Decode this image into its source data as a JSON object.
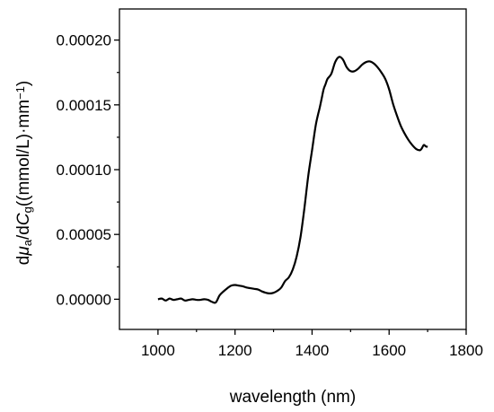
{
  "chart_data": {
    "type": "line",
    "title": "",
    "xlabel": "wavelength (nm)",
    "ylabel": {
      "parts": [
        {
          "text": "d",
          "style": "normal"
        },
        {
          "text": "μ",
          "style": "italic"
        },
        {
          "text": "a",
          "style": "sub"
        },
        {
          "text": "/d",
          "style": "normal"
        },
        {
          "text": "C",
          "style": "italic"
        },
        {
          "text": "g",
          "style": "sub"
        },
        {
          "text": "((mmol/L)·mm",
          "style": "normal"
        },
        {
          "text": "−1",
          "style": "sup"
        },
        {
          "text": ")",
          "style": "normal"
        }
      ]
    },
    "xlim": [
      900,
      1800
    ],
    "ylim": [
      -2.33e-05,
      0.000224
    ],
    "x_ticks": [
      1000,
      1200,
      1400,
      1600,
      1800
    ],
    "x_tick_labels": [
      "1000",
      "1200",
      "1400",
      "1600",
      "1800"
    ],
    "y_ticks": [
      0,
      5e-05,
      0.0001,
      0.00015,
      0.0002
    ],
    "y_tick_labels": [
      "0.00000",
      "0.00005",
      "0.00010",
      "0.00015",
      "0.00020"
    ],
    "grid": false,
    "legend": "none",
    "line_color": "#000000",
    "series": [
      {
        "x": [
          1000,
          1010,
          1020,
          1030,
          1040,
          1050,
          1060,
          1070,
          1080,
          1090,
          1100,
          1110,
          1120,
          1130,
          1140,
          1150,
          1160,
          1170,
          1180,
          1190,
          1200,
          1210,
          1220,
          1230,
          1240,
          1250,
          1260,
          1270,
          1280,
          1290,
          1300,
          1310,
          1320,
          1330,
          1340,
          1350,
          1360,
          1370,
          1380,
          1390,
          1400,
          1410,
          1420,
          1425,
          1430,
          1435,
          1440,
          1450,
          1460,
          1470,
          1480,
          1490,
          1500,
          1510,
          1520,
          1530,
          1540,
          1550,
          1560,
          1570,
          1580,
          1590,
          1600,
          1610,
          1620,
          1630,
          1640,
          1650,
          1660,
          1670,
          1680,
          1685,
          1690,
          1695,
          1700
        ],
        "y": [
          0.0,
          5e-07,
          -1e-06,
          5e-07,
          -5e-07,
          0.0,
          5e-07,
          -1e-06,
          -5e-07,
          0.0,
          -5e-07,
          -5e-07,
          0.0,
          -5e-07,
          -2e-06,
          -2.5e-06,
          3e-06,
          6e-06,
          8.5e-06,
          1.05e-05,
          1.1e-05,
          1.05e-05,
          1e-05,
          9e-06,
          8.5e-06,
          8e-06,
          7.5e-06,
          6e-06,
          5e-06,
          4.5e-06,
          5e-06,
          6.5e-06,
          9e-06,
          1.4e-05,
          1.7e-05,
          2.3e-05,
          3.3e-05,
          4.8e-05,
          7e-05,
          9.5e-05,
          0.000115,
          0.000135,
          0.000148,
          0.000155,
          0.000162,
          0.000166,
          0.00017,
          0.000174,
          0.000183,
          0.000187,
          0.000185,
          0.000179,
          0.000176,
          0.000176,
          0.000178,
          0.000181,
          0.000183,
          0.0001835,
          0.000182,
          0.000179,
          0.000175,
          0.00017,
          0.000162,
          0.000151,
          0.000142,
          0.000134,
          0.000128,
          0.000123,
          0.000119,
          0.000116,
          0.000115,
          0.0001165,
          0.000119,
          0.000118,
          0.0001175
        ]
      }
    ]
  }
}
